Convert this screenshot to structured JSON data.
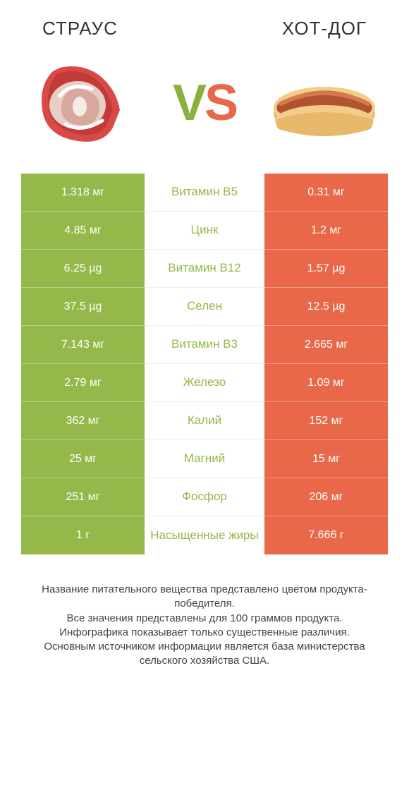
{
  "colors": {
    "green": "#94b84a",
    "orange": "#e9684a",
    "white": "#ffffff"
  },
  "header": {
    "left": "СТРАУС",
    "right": "ХОТ-ДОГ"
  },
  "vs": {
    "v": "V",
    "s": "S"
  },
  "rows": [
    {
      "left": "1.318 мг",
      "mid": "Витамин B5",
      "right": "0.31 мг",
      "winner": "left"
    },
    {
      "left": "4.85 мг",
      "mid": "Цинк",
      "right": "1.2 мг",
      "winner": "left"
    },
    {
      "left": "6.25 µg",
      "mid": "Витамин B12",
      "right": "1.57 µg",
      "winner": "left"
    },
    {
      "left": "37.5 µg",
      "mid": "Селен",
      "right": "12.5 µg",
      "winner": "left"
    },
    {
      "left": "7.143 мг",
      "mid": "Витамин B3",
      "right": "2.665 мг",
      "winner": "left"
    },
    {
      "left": "2.79 мг",
      "mid": "Железо",
      "right": "1.09 мг",
      "winner": "left"
    },
    {
      "left": "362 мг",
      "mid": "Калий",
      "right": "152 мг",
      "winner": "left"
    },
    {
      "left": "25 мг",
      "mid": "Магний",
      "right": "15 мг",
      "winner": "left"
    },
    {
      "left": "251 мг",
      "mid": "Фосфор",
      "right": "206 мг",
      "winner": "left"
    },
    {
      "left": "1 г",
      "mid": "Насыщенные жиры",
      "right": "7.666 г",
      "winner": "left"
    }
  ],
  "footer": {
    "line1": "Название питательного вещества представлено цветом продукта-победителя.",
    "line2": "Все значения представлены для 100 граммов продукта.",
    "line3": "Инфографика показывает только существенные различия.",
    "line4": "Основным источником информации является база министерства сельского хозяйства США."
  }
}
